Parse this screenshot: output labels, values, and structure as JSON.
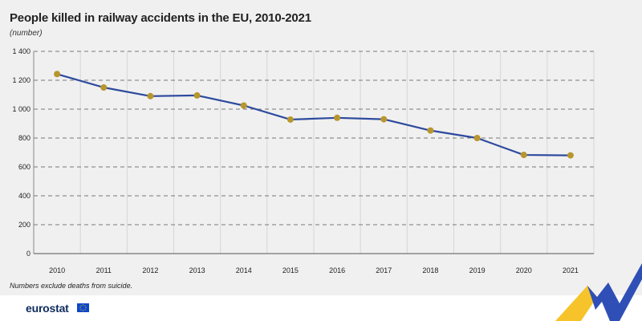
{
  "title": "People killed in railway accidents in the EU, 2010-2021",
  "subtitle": "(number)",
  "note": "Numbers exclude deaths from suicide.",
  "logo_text": "eurostat",
  "colors": {
    "line": "#2d4a9e",
    "marker": "#b8962e",
    "grid": "#777777",
    "background": "#f0f0f0"
  },
  "chart_data": {
    "type": "line",
    "x": [
      "2010",
      "2011",
      "2012",
      "2013",
      "2014",
      "2015",
      "2016",
      "2017",
      "2018",
      "2019",
      "2020",
      "2021"
    ],
    "series": [
      {
        "values": [
          1243,
          1150,
          1090,
          1095,
          1025,
          928,
          940,
          930,
          852,
          800,
          683,
          680
        ]
      }
    ],
    "ylim": [
      0,
      1400
    ],
    "yticks": [
      0,
      200,
      400,
      600,
      800,
      1000,
      1200,
      1400
    ],
    "ytick_labels": [
      "0",
      "200",
      "400",
      "600",
      "800",
      "1 000",
      "1 200",
      "1 400"
    ],
    "grid": "horizontal dashed",
    "legend": "none"
  }
}
